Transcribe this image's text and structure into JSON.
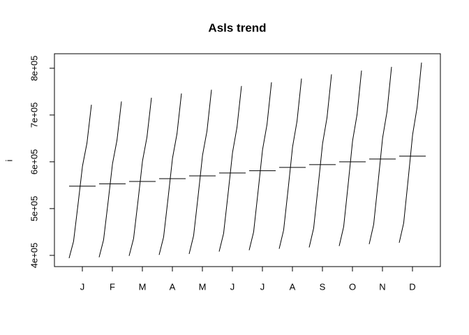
{
  "chart_data": {
    "type": "monthplot",
    "title": "Asls trend",
    "y_label": "i",
    "categories": [
      "J",
      "F",
      "M",
      "A",
      "M",
      "J",
      "J",
      "A",
      "S",
      "O",
      "N",
      "D"
    ],
    "groups": [
      {
        "values": [
          394000,
          430000,
          509000,
          591000,
          640000,
          722000
        ],
        "mean": 548000
      },
      {
        "values": [
          396000,
          433000,
          513000,
          596000,
          646000,
          729000
        ],
        "mean": 553000
      },
      {
        "values": [
          399000,
          436000,
          517000,
          602000,
          653000,
          737000
        ],
        "mean": 558000
      },
      {
        "values": [
          401000,
          439000,
          522000,
          608000,
          660000,
          746000
        ],
        "mean": 564000
      },
      {
        "values": [
          403000,
          442000,
          526000,
          614000,
          666000,
          754000
        ],
        "mean": 570000
      },
      {
        "values": [
          408000,
          447000,
          532000,
          620000,
          674000,
          762000
        ],
        "mean": 576000
      },
      {
        "values": [
          411000,
          450000,
          537000,
          626000,
          680000,
          770000
        ],
        "mean": 581000
      },
      {
        "values": [
          414000,
          454000,
          541000,
          632000,
          687000,
          778000
        ],
        "mean": 588000
      },
      {
        "values": [
          417000,
          458000,
          547000,
          639000,
          695000,
          787000
        ],
        "mean": 594000
      },
      {
        "values": [
          420000,
          461000,
          551000,
          645000,
          701000,
          795000
        ],
        "mean": 600000
      },
      {
        "values": [
          424000,
          466000,
          557000,
          651000,
          708000,
          803000
        ],
        "mean": 606000
      },
      {
        "values": [
          427000,
          469000,
          562000,
          658000,
          716000,
          812000
        ],
        "mean": 612000
      }
    ],
    "color": "#000000",
    "ylim": [
      376000,
      831000
    ],
    "yticks": [
      {
        "value": 400000,
        "label": "4e+05"
      },
      {
        "value": 500000,
        "label": "5e+05"
      },
      {
        "value": 600000,
        "label": "6e+05"
      },
      {
        "value": 700000,
        "label": "7e+05"
      },
      {
        "value": 800000,
        "label": "8e+05"
      }
    ]
  }
}
